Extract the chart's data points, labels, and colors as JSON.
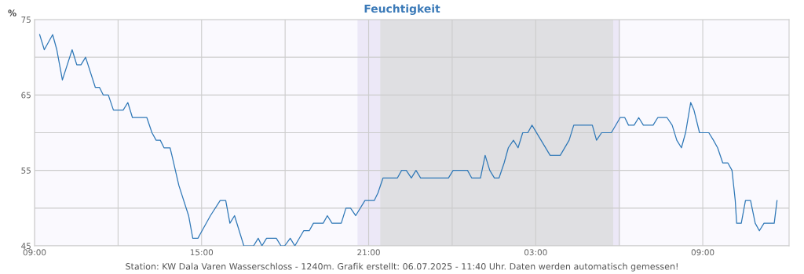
{
  "chart_data": {
    "type": "line",
    "title": "Feuchtigkeit",
    "ylabel": "%",
    "annotations": [
      "Station: KW Dala Varen Wasserschloss - 1240m. Grafik erstellt: 06.07.2025 - 11:40 Uhr. Daten werden automatisch gemessen!"
    ],
    "series": [
      {
        "color": "#2f78b7",
        "x": [
          "2025-07-05T09:11",
          "2025-07-05T09:21",
          "2025-07-05T09:39",
          "2025-07-05T09:48",
          "2025-07-05T10:00",
          "2025-07-05T10:21",
          "2025-07-05T10:31",
          "2025-07-05T10:40",
          "2025-07-05T10:50",
          "2025-07-05T11:11",
          "2025-07-05T11:20",
          "2025-07-05T11:28",
          "2025-07-05T11:39",
          "2025-07-05T11:50",
          "2025-07-05T12:11",
          "2025-07-05T12:21",
          "2025-07-05T12:31",
          "2025-07-05T13:02",
          "2025-07-05T13:13",
          "2025-07-05T13:22",
          "2025-07-05T13:31",
          "2025-07-05T13:39",
          "2025-07-05T13:52",
          "2025-07-05T13:56",
          "2025-07-05T14:11",
          "2025-07-05T14:32",
          "2025-07-05T14:41",
          "2025-07-05T14:52",
          "2025-07-05T15:19",
          "2025-07-05T15:40",
          "2025-07-05T15:52",
          "2025-07-05T16:01",
          "2025-07-05T16:11",
          "2025-07-05T16:31",
          "2025-07-05T16:52",
          "2025-07-05T17:02",
          "2025-07-05T17:10",
          "2025-07-05T17:20",
          "2025-07-05T17:41",
          "2025-07-05T17:51",
          "2025-07-05T17:59",
          "2025-07-05T18:11",
          "2025-07-05T18:21",
          "2025-07-05T18:40",
          "2025-07-05T18:52",
          "2025-07-05T19:01",
          "2025-07-05T19:22",
          "2025-07-05T19:31",
          "2025-07-05T19:41",
          "2025-07-05T20:01",
          "2025-07-05T20:11",
          "2025-07-05T20:21",
          "2025-07-05T20:32",
          "2025-07-05T20:52",
          "2025-07-05T21:12",
          "2025-07-05T21:20",
          "2025-07-05T21:31",
          "2025-07-05T22:02",
          "2025-07-05T22:11",
          "2025-07-05T22:21",
          "2025-07-05T22:32",
          "2025-07-05T22:42",
          "2025-07-05T22:52",
          "2025-07-05T23:52",
          "2025-07-06T00:02",
          "2025-07-06T00:33",
          "2025-07-06T00:42",
          "2025-07-06T01:01",
          "2025-07-06T01:11",
          "2025-07-06T01:21",
          "2025-07-06T01:31",
          "2025-07-06T01:41",
          "2025-07-06T01:52",
          "2025-07-06T02:01",
          "2025-07-06T02:12",
          "2025-07-06T02:22",
          "2025-07-06T02:32",
          "2025-07-06T02:43",
          "2025-07-06T02:52",
          "2025-07-06T03:31",
          "2025-07-06T03:53",
          "2025-07-06T04:12",
          "2025-07-06T04:22",
          "2025-07-06T05:02",
          "2025-07-06T05:11",
          "2025-07-06T05:22",
          "2025-07-06T05:43",
          "2025-07-06T06:02",
          "2025-07-06T06:12",
          "2025-07-06T06:20",
          "2025-07-06T06:32",
          "2025-07-06T06:42",
          "2025-07-06T06:52",
          "2025-07-06T07:13",
          "2025-07-06T07:23",
          "2025-07-06T07:43",
          "2025-07-06T07:54",
          "2025-07-06T08:04",
          "2025-07-06T08:14",
          "2025-07-06T08:23",
          "2025-07-06T08:34",
          "2025-07-06T08:41",
          "2025-07-06T08:53",
          "2025-07-06T09:13",
          "2025-07-06T09:23",
          "2025-07-06T09:32",
          "2025-07-06T09:43",
          "2025-07-06T09:54",
          "2025-07-06T10:03",
          "2025-07-06T10:10",
          "2025-07-06T10:13",
          "2025-07-06T10:23",
          "2025-07-06T10:32",
          "2025-07-06T10:43",
          "2025-07-06T10:53",
          "2025-07-06T11:02",
          "2025-07-06T11:12",
          "2025-07-06T11:34",
          "2025-07-06T11:40"
        ],
        "values": [
          73,
          71,
          73,
          71,
          67,
          71,
          69,
          69,
          70,
          66,
          66,
          65,
          65,
          63,
          63,
          64,
          62,
          62,
          60,
          59,
          59,
          58,
          58,
          57,
          53,
          49,
          46,
          46,
          49,
          51,
          51,
          48,
          49,
          45,
          45,
          46,
          45,
          46,
          46,
          45,
          45,
          46,
          45,
          47,
          47,
          48,
          48,
          49,
          48,
          48,
          50,
          50,
          49,
          51,
          51,
          52,
          54,
          54,
          55,
          55,
          54,
          55,
          54,
          54,
          55,
          55,
          54,
          54,
          57,
          55,
          54,
          54,
          56,
          58,
          59,
          58,
          60,
          60,
          61,
          57,
          57,
          59,
          61,
          61,
          59,
          60,
          60,
          62,
          62,
          61,
          61,
          62,
          61,
          61,
          62,
          62,
          61,
          59,
          58,
          60,
          64,
          63,
          60,
          60,
          59,
          58,
          56,
          56,
          55,
          51,
          48,
          48,
          51,
          51,
          48,
          47,
          48,
          48,
          51
        ]
      }
    ],
    "xlim": [
      "2025-07-05T09:00",
      "2025-07-06T12:06"
    ],
    "ylim": [
      45,
      75
    ],
    "xticks": [
      {
        "value": "2025-07-05T09:00",
        "label": "09:00"
      },
      {
        "value": "2025-07-05T12:00",
        "label": null
      },
      {
        "value": "2025-07-05T15:00",
        "label": "15:00"
      },
      {
        "value": "2025-07-05T18:00",
        "label": null
      },
      {
        "value": "2025-07-05T21:00",
        "label": "21:00"
      },
      {
        "value": "2025-07-06T00:00",
        "label": null
      },
      {
        "value": "2025-07-06T03:00",
        "label": "03:00"
      },
      {
        "value": "2025-07-06T06:00",
        "label": null
      },
      {
        "value": "2025-07-06T09:00",
        "label": "09:00"
      }
    ],
    "yticks": [
      45,
      {
        "value": 50,
        "label": null
      },
      55,
      {
        "value": 60,
        "label": null
      },
      65,
      {
        "value": 70,
        "label": null
      },
      75
    ],
    "bands": [
      {
        "axis": "x",
        "from": "2025-07-05T20:36",
        "to": "2025-07-06T06:02",
        "color": "#ece8f7"
      },
      {
        "axis": "x",
        "from": "2025-07-05T21:25",
        "to": "2025-07-06T05:47",
        "color": "#dfdfe2"
      }
    ],
    "grid": true,
    "line_style": "solid"
  }
}
